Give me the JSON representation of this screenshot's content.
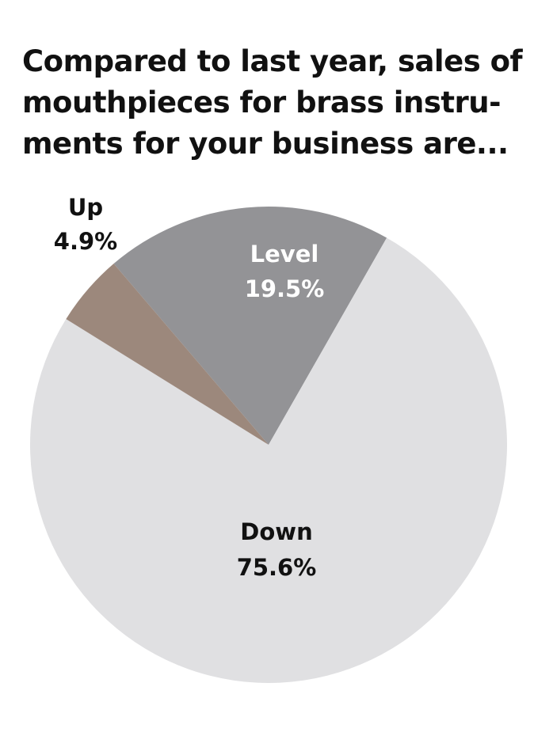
{
  "chart_data": {
    "type": "pie",
    "title_lines": [
      "Compared to last year, sales of",
      "mouthpieces for brass instru-",
      "ments for your business are..."
    ],
    "slices": [
      {
        "label": "Level",
        "value": 19.5,
        "value_label": "19.5%",
        "color": "#939396",
        "label_color": "#ffffff"
      },
      {
        "label": "Down",
        "value": 75.6,
        "value_label": "75.6%",
        "color": "#e0e0e2",
        "label_color": "#111111"
      },
      {
        "label": "Up",
        "value": 4.9,
        "value_label": "4.9%",
        "color": "#9c887c",
        "label_color": "#111111"
      }
    ]
  }
}
